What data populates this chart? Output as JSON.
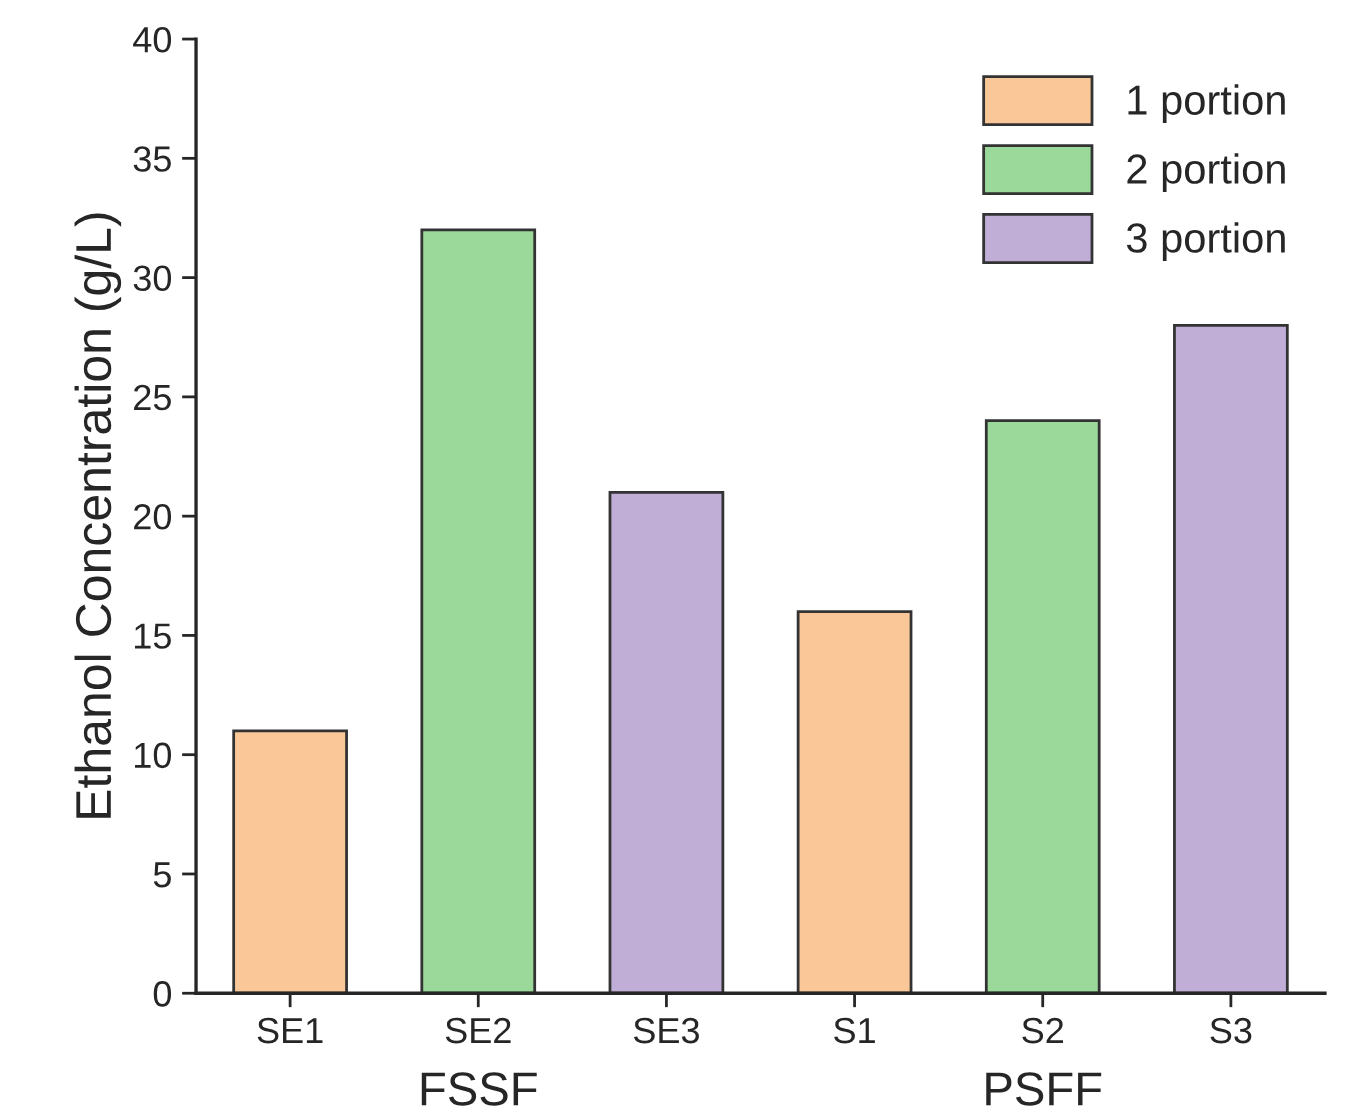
{
  "chart_data": {
    "type": "bar",
    "ylabel": "Ethanol Concentration (g/L)",
    "categories": [
      "SE1",
      "SE2",
      "SE3",
      "S1",
      "S2",
      "S3"
    ],
    "series": [
      {
        "name": "1 portion",
        "color": "#fac898",
        "values": [
          11,
          null,
          null,
          16,
          null,
          null
        ]
      },
      {
        "name": "2 portion",
        "color": "#9ad99a",
        "values": [
          null,
          32,
          null,
          null,
          24,
          null
        ]
      },
      {
        "name": "3 portion",
        "color": "#c0aed6",
        "values": [
          null,
          null,
          21,
          null,
          null,
          28
        ]
      }
    ],
    "annotations": [
      "FSSF",
      "PSFF"
    ],
    "ylim": [
      0,
      40
    ],
    "yticks": [
      0,
      5,
      10,
      15,
      20,
      25,
      30,
      35,
      40
    ],
    "legend": "top right",
    "grid": false
  }
}
